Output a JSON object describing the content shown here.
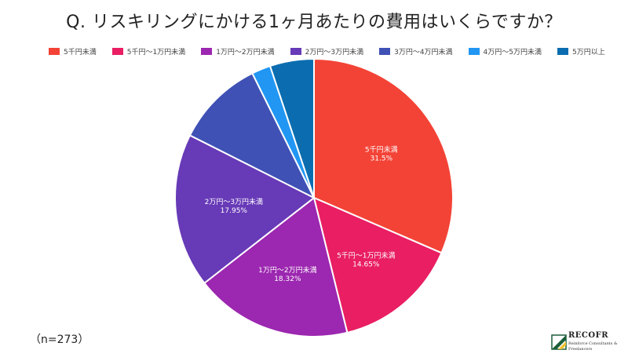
{
  "title": "Q. リスキリングにかける1ヶ月あたりの費用はいくらですか？",
  "sample_note": "（n=273）",
  "logo": {
    "name": "RECOFR",
    "tagline": "Reinforce Consultants & Freelancers"
  },
  "chart_data": {
    "type": "pie",
    "title": "Q. リスキリングにかける1ヶ月あたりの費用はいくらですか？",
    "legend_position": "top",
    "start_angle": "12 o'clock, clockwise",
    "slices": [
      {
        "label": "5千円未満",
        "value": 31.5,
        "value_label": "31.5%",
        "color": "#f34336",
        "show_label": true
      },
      {
        "label": "5千円〜1万円未満",
        "value": 14.65,
        "value_label": "14.65%",
        "color": "#e91e63",
        "show_label": true
      },
      {
        "label": "1万円〜2万円未満",
        "value": 18.32,
        "value_label": "18.32%",
        "color": "#9c27b0",
        "show_label": true
      },
      {
        "label": "2万円〜3万円未満",
        "value": 17.95,
        "value_label": "17.95%",
        "color": "#673ab7",
        "show_label": true
      },
      {
        "label": "3万円〜4万円未満",
        "value": 10.26,
        "value_label": "",
        "color": "#3f51b5",
        "show_label": false
      },
      {
        "label": "4万円〜5万円未満",
        "value": 2.2,
        "value_label": "",
        "color": "#2196f3",
        "show_label": false
      },
      {
        "label": "5万円以上",
        "value": 5.12,
        "value_label": "",
        "color": "#0b6db0",
        "show_label": false
      }
    ]
  }
}
